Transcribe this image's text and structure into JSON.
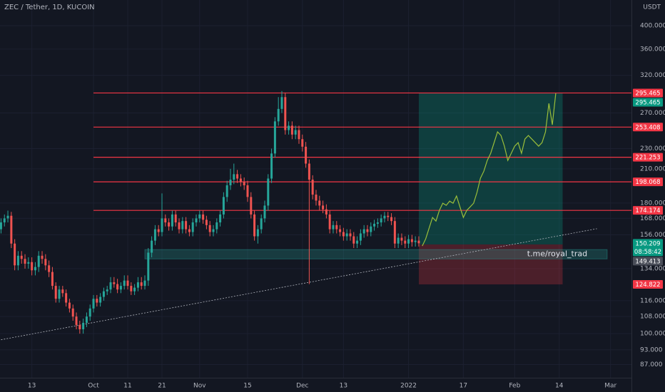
{
  "chart_data": {
    "type": "candlestick",
    "title": "ZEC / Tether, 1D, KUCOIN",
    "currency": "USDT",
    "log_scale": true,
    "grid": true,
    "ylim": [
      82,
      449
    ],
    "yticks": [
      {
        "value": 400,
        "label": "400.000"
      },
      {
        "value": 360,
        "label": "360.000"
      },
      {
        "value": 320,
        "label": "320.000"
      },
      {
        "value": 270,
        "label": "270.000"
      },
      {
        "value": 230,
        "label": "230.000"
      },
      {
        "value": 210,
        "label": "210.000"
      },
      {
        "value": 180,
        "label": "180.000"
      },
      {
        "value": 168,
        "label": "168.000"
      },
      {
        "value": 156,
        "label": "156.000"
      },
      {
        "value": 134,
        "label": "134.000"
      },
      {
        "value": 116,
        "label": "116.000"
      },
      {
        "value": 108,
        "label": "108.000"
      },
      {
        "value": 100,
        "label": "100.000"
      },
      {
        "value": 93,
        "label": "93.000"
      },
      {
        "value": 87,
        "label": "87.000"
      }
    ],
    "xlim": [
      -0.3,
      184.1
    ],
    "xticks": [
      {
        "value": 9,
        "label": "13"
      },
      {
        "value": 27,
        "label": "Oct"
      },
      {
        "value": 37,
        "label": "11"
      },
      {
        "value": 47,
        "label": "21"
      },
      {
        "value": 58,
        "label": "Nov"
      },
      {
        "value": 72,
        "label": "15"
      },
      {
        "value": 88,
        "label": "Dec"
      },
      {
        "value": 100,
        "label": "13"
      },
      {
        "value": 119,
        "label": "2022"
      },
      {
        "value": 135,
        "label": "17"
      },
      {
        "value": 150,
        "label": "Feb"
      },
      {
        "value": 163,
        "label": "14"
      },
      {
        "value": 178,
        "label": "Mar"
      }
    ],
    "up_color": "#26a69a",
    "down_color": "#ef5350",
    "candles": {
      "open": [
        160,
        165,
        168,
        170,
        150,
        136,
        142,
        140,
        137,
        138,
        133,
        135,
        142,
        140,
        136,
        132,
        124,
        117,
        122,
        120,
        115,
        112,
        108,
        104,
        102,
        105,
        108,
        112,
        117,
        115,
        118,
        121,
        122,
        126,
        125,
        122,
        124,
        127,
        124,
        121,
        123,
        126,
        124,
        127,
        144,
        152,
        160,
        158,
        168,
        165,
        162,
        171,
        165,
        160,
        166,
        160,
        158,
        165,
        168,
        171,
        167,
        163,
        158,
        160,
        165,
        171,
        185,
        195,
        200,
        205,
        201,
        198,
        195,
        185,
        171,
        155,
        160,
        168,
        178,
        201,
        225,
        260,
        275,
        290,
        250,
        255,
        245,
        250,
        240,
        232,
        215,
        200,
        187,
        182,
        178,
        175,
        171,
        160,
        163,
        160,
        158,
        155,
        157,
        155,
        150,
        152,
        157,
        160,
        158,
        162,
        164,
        165,
        168,
        170,
        169,
        166,
        150,
        154,
        152,
        150,
        153,
        151,
        152
      ],
      "high": [
        168,
        171,
        174,
        173,
        153,
        145,
        145,
        143,
        141,
        141,
        138,
        145,
        145,
        143,
        139,
        135,
        126,
        124,
        124,
        122,
        117,
        114,
        110,
        106,
        107,
        110,
        114,
        119,
        119,
        120,
        123,
        124,
        129,
        129,
        128,
        126,
        130,
        130,
        126,
        125,
        129,
        129,
        130,
        147,
        155,
        163,
        163,
        188,
        171,
        168,
        174,
        174,
        168,
        169,
        169,
        163,
        168,
        171,
        174,
        174,
        170,
        166,
        163,
        168,
        174,
        189,
        199,
        210,
        215,
        209,
        205,
        202,
        199,
        189,
        174,
        163,
        171,
        182,
        205,
        230,
        265,
        290,
        298,
        296,
        260,
        260,
        255,
        255,
        245,
        237,
        219,
        204,
        191,
        186,
        182,
        179,
        174,
        166,
        166,
        163,
        161,
        160,
        160,
        158,
        155,
        160,
        163,
        163,
        165,
        167,
        168,
        171,
        173,
        173,
        172,
        169,
        157,
        157,
        155,
        156,
        156,
        155,
        155
      ],
      "low": [
        157,
        162,
        165,
        147,
        133,
        133,
        137,
        134,
        134,
        130,
        130,
        132,
        137,
        133,
        129,
        122,
        115,
        115,
        118,
        113,
        110,
        106,
        102,
        100,
        100,
        103,
        106,
        110,
        113,
        113,
        116,
        119,
        120,
        123,
        120,
        120,
        122,
        122,
        119,
        119,
        121,
        122,
        122,
        124,
        141,
        149,
        155,
        155,
        162,
        159,
        159,
        162,
        157,
        157,
        157,
        155,
        155,
        162,
        165,
        164,
        160,
        155,
        155,
        157,
        162,
        168,
        181,
        191,
        196,
        197,
        194,
        191,
        181,
        168,
        152,
        150,
        157,
        165,
        174,
        197,
        221,
        255,
        270,
        245,
        245,
        240,
        240,
        235,
        227,
        211,
        125,
        183,
        178,
        174,
        172,
        168,
        157,
        157,
        157,
        155,
        152,
        152,
        152,
        147,
        147,
        149,
        154,
        155,
        155,
        159,
        161,
        162,
        165,
        166,
        163,
        147,
        147,
        149,
        147,
        147,
        148,
        148,
        148
      ],
      "close": [
        165,
        168,
        170,
        150,
        136,
        142,
        140,
        137,
        138,
        133,
        135,
        142,
        140,
        136,
        132,
        124,
        117,
        122,
        120,
        115,
        112,
        108,
        104,
        102,
        105,
        108,
        112,
        117,
        115,
        118,
        121,
        122,
        126,
        125,
        122,
        124,
        127,
        124,
        121,
        123,
        126,
        124,
        127,
        144,
        152,
        160,
        158,
        168,
        165,
        162,
        171,
        165,
        160,
        166,
        160,
        158,
        165,
        168,
        171,
        167,
        163,
        158,
        160,
        165,
        171,
        185,
        195,
        200,
        205,
        201,
        198,
        195,
        185,
        171,
        155,
        160,
        168,
        178,
        201,
        225,
        260,
        275,
        290,
        250,
        255,
        245,
        250,
        240,
        232,
        215,
        200,
        187,
        182,
        178,
        175,
        171,
        160,
        163,
        160,
        158,
        155,
        157,
        155,
        150,
        152,
        157,
        160,
        158,
        162,
        164,
        165,
        168,
        170,
        169,
        166,
        150,
        154,
        152,
        150,
        153,
        151,
        152,
        150.209
      ]
    },
    "levels": [
      295.465,
      253.408,
      221.253,
      198.068,
      174.174
    ],
    "levels_color": "#f23645",
    "levels_from": 27,
    "position": {
      "start": 122,
      "end": 164,
      "entry": 149.413,
      "target": 295.465,
      "stop": 124.822
    },
    "support_zone": {
      "from": 42,
      "to": 177,
      "low": 140,
      "high": 146,
      "label": "t.me/royal_trad"
    },
    "trend_line": {
      "x": [
        0,
        174
      ],
      "y": [
        97.3,
        160.4
      ]
    },
    "projection": {
      "color": "#9bbf3a",
      "start": 123,
      "values": [
        148.4,
        153.2,
        160.8,
        168.7,
        166,
        174.2,
        179.9,
        178.2,
        181.6,
        179.9,
        185.8,
        177,
        168.7,
        174.2,
        177,
        179.9,
        188.8,
        201.3,
        207.8,
        218.1,
        225.2,
        236.3,
        248,
        244,
        232.5,
        218.1,
        225.2,
        232.5,
        236.3,
        225.2,
        240.1,
        244,
        240.1,
        236.3,
        232.5,
        236.3,
        248,
        281.9,
        256,
        295
      ]
    },
    "price_tags": [
      {
        "value": 295.465,
        "color": "#f23645"
      },
      {
        "value": 295.465,
        "color": "#089981"
      },
      {
        "value": 253.408,
        "color": "#f23645"
      },
      {
        "value": 221.253,
        "color": "#f23645"
      },
      {
        "value": 198.068,
        "color": "#f23645"
      },
      {
        "value": 174.174,
        "color": "#f23645"
      },
      {
        "value": 150.209,
        "color": "#089981",
        "sub": "08:58:42"
      },
      {
        "value": 149.413,
        "color": "#4a4e59"
      },
      {
        "value": 124.822,
        "color": "#f23645"
      }
    ]
  }
}
